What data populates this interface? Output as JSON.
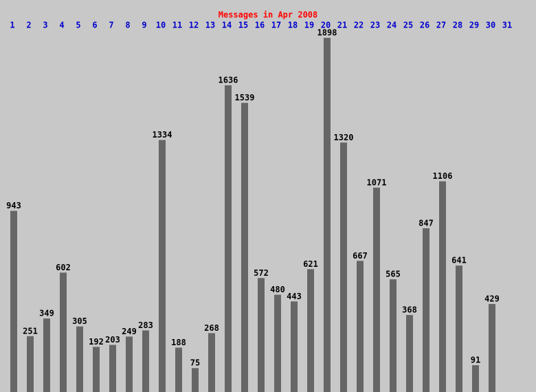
{
  "chart_data": {
    "type": "bar",
    "title": "Messages in Apr 2008",
    "categories": [
      "1",
      "2",
      "3",
      "4",
      "5",
      "6",
      "7",
      "8",
      "9",
      "10",
      "11",
      "12",
      "13",
      "14",
      "15",
      "16",
      "17",
      "18",
      "19",
      "20",
      "21",
      "22",
      "23",
      "24",
      "25",
      "26",
      "27",
      "28",
      "29",
      "30",
      "31"
    ],
    "values": [
      943,
      251,
      349,
      602,
      305,
      192,
      203,
      249,
      283,
      1334,
      188,
      75,
      268,
      1636,
      1539,
      572,
      480,
      443,
      621,
      1898,
      1320,
      667,
      1071,
      565,
      368,
      847,
      1106,
      641,
      91,
      429,
      null
    ],
    "color": "#666666"
  }
}
